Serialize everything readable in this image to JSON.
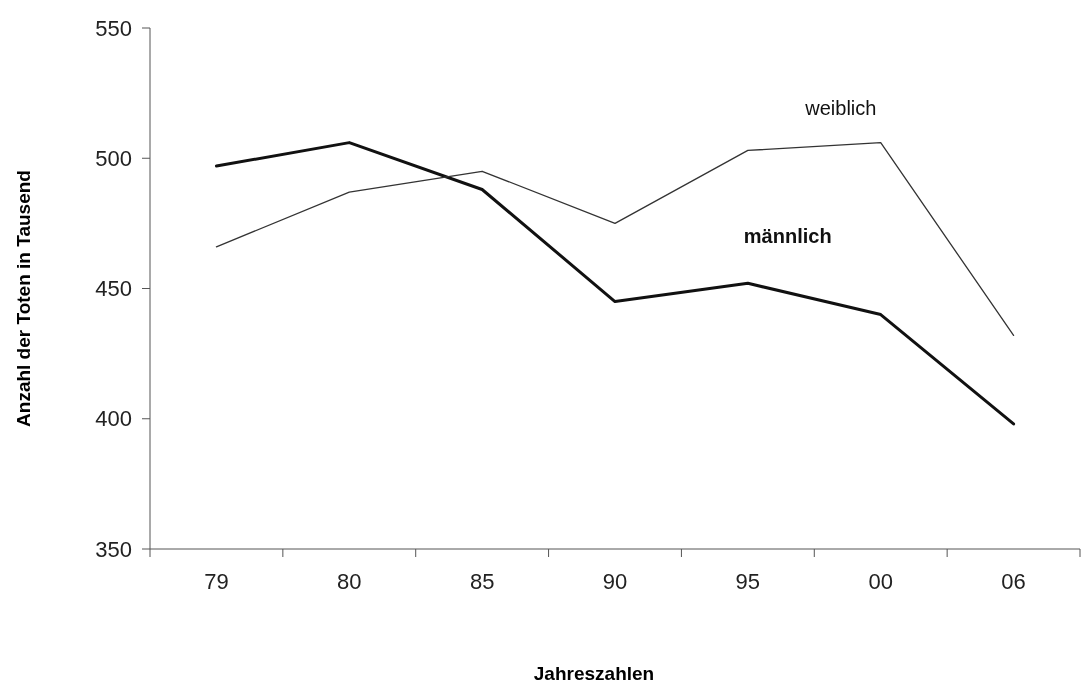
{
  "chart_data": {
    "type": "line",
    "xlabel": "Jahreszahlen",
    "ylabel": "Anzahl der Toten in Tausend",
    "categories": [
      "79",
      "80",
      "85",
      "90",
      "95",
      "00",
      "06"
    ],
    "series": [
      {
        "name": "männlich",
        "color": "#111111",
        "values": [
          497,
          506,
          488,
          445,
          452,
          440,
          398
        ]
      },
      {
        "name": "weiblich",
        "color": "#333333",
        "values": [
          466,
          487,
          495,
          475,
          503,
          506,
          432
        ]
      }
    ],
    "ylim": [
      350,
      550
    ],
    "yticks": [
      350,
      400,
      450,
      500,
      550
    ],
    "grid": false,
    "marker": "none",
    "line_style": "solid"
  }
}
